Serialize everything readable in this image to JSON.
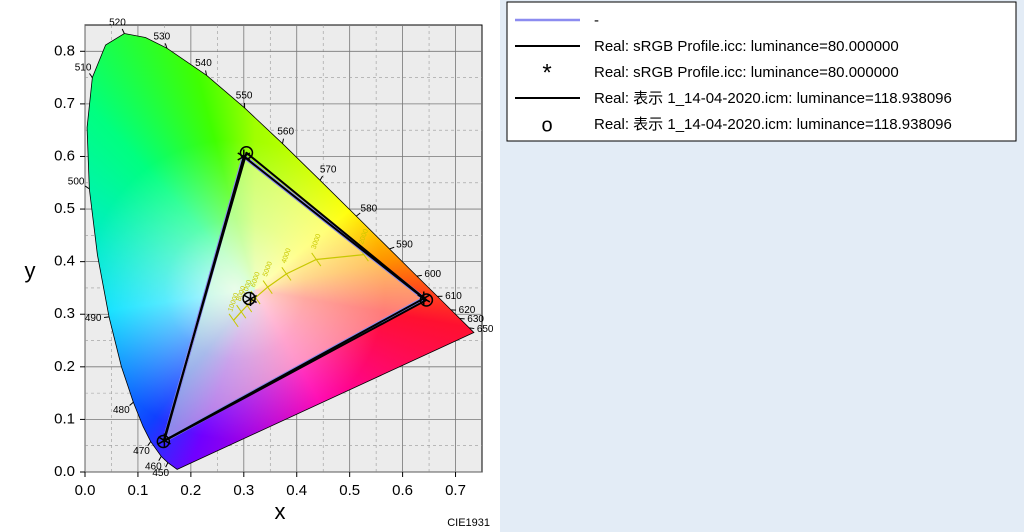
{
  "chart_data": {
    "type": "chromaticity",
    "xlabel": "x",
    "ylabel": "y",
    "footnote": "CIE1931",
    "xlim": [
      0,
      0.75
    ],
    "ylim": [
      0,
      0.85
    ],
    "xticks": [
      {
        "value": 0,
        "label": "0.0"
      },
      {
        "value": 0.1,
        "label": "0.1"
      },
      {
        "value": 0.2,
        "label": "0.2"
      },
      {
        "value": 0.3,
        "label": "0.3"
      },
      {
        "value": 0.4,
        "label": "0.4"
      },
      {
        "value": 0.5,
        "label": "0.5"
      },
      {
        "value": 0.6,
        "label": "0.6"
      },
      {
        "value": 0.7,
        "label": "0.7"
      }
    ],
    "yticks": [
      {
        "value": 0,
        "label": "0.0"
      },
      {
        "value": 0.1,
        "label": "0.1"
      },
      {
        "value": 0.2,
        "label": "0.2"
      },
      {
        "value": 0.3,
        "label": "0.3"
      },
      {
        "value": 0.4,
        "label": "0.4"
      },
      {
        "value": 0.5,
        "label": "0.5"
      },
      {
        "value": 0.6,
        "label": "0.6"
      },
      {
        "value": 0.7,
        "label": "0.7"
      },
      {
        "value": 0.8,
        "label": "0.8"
      }
    ],
    "grid": true,
    "minor_grid": true,
    "spectral_locus": {
      "x": [
        0.1741,
        0.1566,
        0.144,
        0.1241,
        0.1096,
        0.0913,
        0.0687,
        0.0454,
        0.0235,
        0.0082,
        0.0039,
        0.0139,
        0.0389,
        0.0743,
        0.1142,
        0.1547,
        0.2296,
        0.3016,
        0.3731,
        0.4441,
        0.5125,
        0.5752,
        0.627,
        0.6658,
        0.6915,
        0.7079,
        0.726,
        0.7347
      ],
      "y": [
        0.005,
        0.0177,
        0.0297,
        0.0578,
        0.0868,
        0.1327,
        0.2007,
        0.295,
        0.4127,
        0.5384,
        0.6548,
        0.7502,
        0.812,
        0.8338,
        0.8262,
        0.8059,
        0.7543,
        0.6923,
        0.6245,
        0.5547,
        0.4866,
        0.4242,
        0.3725,
        0.334,
        0.3083,
        0.292,
        0.274,
        0.2653
      ],
      "labels": [
        null,
        "450",
        "460",
        "470",
        null,
        "480",
        null,
        "490",
        null,
        "500",
        null,
        "510",
        null,
        "520",
        null,
        "530",
        "540",
        "550",
        "560",
        "570",
        "580",
        "590",
        "600",
        "610",
        "620",
        "630",
        "650",
        null
      ]
    },
    "planckian_locus": {
      "color": "#c8c800",
      "x": [
        0.5267,
        0.4369,
        0.3805,
        0.3451,
        0.3221,
        0.3064,
        0.2952,
        0.2807
      ],
      "y": [
        0.4133,
        0.4041,
        0.3768,
        0.3516,
        0.3318,
        0.3166,
        0.3048,
        0.2884
      ],
      "labels": [
        "2000",
        "3000",
        "4000",
        "5000",
        "6000",
        "7000",
        "8000",
        "10000"
      ]
    },
    "series": [
      {
        "name": "-",
        "color": "#8c8cf0",
        "marker": "line",
        "x": [
          0.64,
          0.3,
          0.15,
          0.64
        ],
        "y": [
          0.33,
          0.6,
          0.06,
          0.33
        ]
      },
      {
        "name": "Real: sRGB Profile.icc: luminance=80.000000",
        "color": "#000000",
        "marker": "line",
        "x": [
          0.64,
          0.3,
          0.15,
          0.64
        ],
        "y": [
          0.33,
          0.6,
          0.06,
          0.33
        ]
      },
      {
        "name": "Real: sRGB Profile.icc: luminance=80.000000",
        "color": "#000000",
        "marker": "*",
        "x": [
          0.64,
          0.3,
          0.15,
          0.3127
        ],
        "y": [
          0.33,
          0.6,
          0.06,
          0.329
        ]
      },
      {
        "name": "Real: 表示 1_14-04-2020.icm: luminance=118.938096",
        "color": "#000000",
        "marker": "line",
        "x": [
          0.645,
          0.305,
          0.148,
          0.645
        ],
        "y": [
          0.327,
          0.607,
          0.058,
          0.327
        ]
      },
      {
        "name": "Real: 表示 1_14-04-2020.icm: luminance=118.938096",
        "color": "#000000",
        "marker": "o",
        "x": [
          0.645,
          0.305,
          0.148,
          0.31
        ],
        "y": [
          0.327,
          0.607,
          0.058,
          0.33
        ]
      }
    ]
  }
}
